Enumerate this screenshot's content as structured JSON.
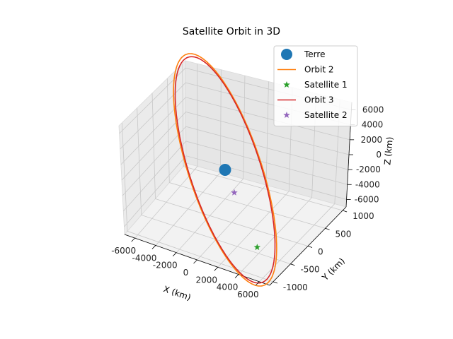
{
  "chart_data": {
    "type": "line3d",
    "title": "Satellite Orbit in 3D",
    "xlabel": "X (km)",
    "ylabel": "Y (km)",
    "zlabel": "Z (km)",
    "xlim": [
      -7000,
      7000
    ],
    "ylim": [
      -1100,
      1100
    ],
    "zlim": [
      -7000,
      7000
    ],
    "x_ticks": [
      -6000,
      -4000,
      -2000,
      0,
      2000,
      4000,
      6000
    ],
    "y_ticks": [
      -1000,
      -500,
      0,
      500,
      1000
    ],
    "z_ticks": [
      -6000,
      -4000,
      -2000,
      0,
      2000,
      4000,
      6000
    ],
    "grid": true,
    "legend_position": "top-right",
    "series": [
      {
        "name": "Terre",
        "kind": "point",
        "marker": "circle",
        "color": "#1f77b4",
        "x": [
          0
        ],
        "y": [
          0
        ],
        "z": [
          0
        ]
      },
      {
        "name": "Orbit 2",
        "kind": "ellipse",
        "color": "#ff7f0e",
        "semi_axis_x": 6800,
        "semi_axis_y": 1000,
        "semi_axis_z": 6800
      },
      {
        "name": "Satellite 1",
        "kind": "point",
        "marker": "star",
        "color": "#2ca02c",
        "x": [
          4800
        ],
        "y": [
          -700
        ],
        "z": [
          -4800
        ]
      },
      {
        "name": "Orbit 3",
        "kind": "ellipse",
        "color": "#d62728",
        "semi_axis_x": 6600,
        "semi_axis_y": 980,
        "semi_axis_z": 6600
      },
      {
        "name": "Satellite 2",
        "kind": "point",
        "marker": "star",
        "color": "#9467bd",
        "x": [
          1400
        ],
        "y": [
          -210
        ],
        "z": [
          -1400
        ]
      }
    ]
  }
}
